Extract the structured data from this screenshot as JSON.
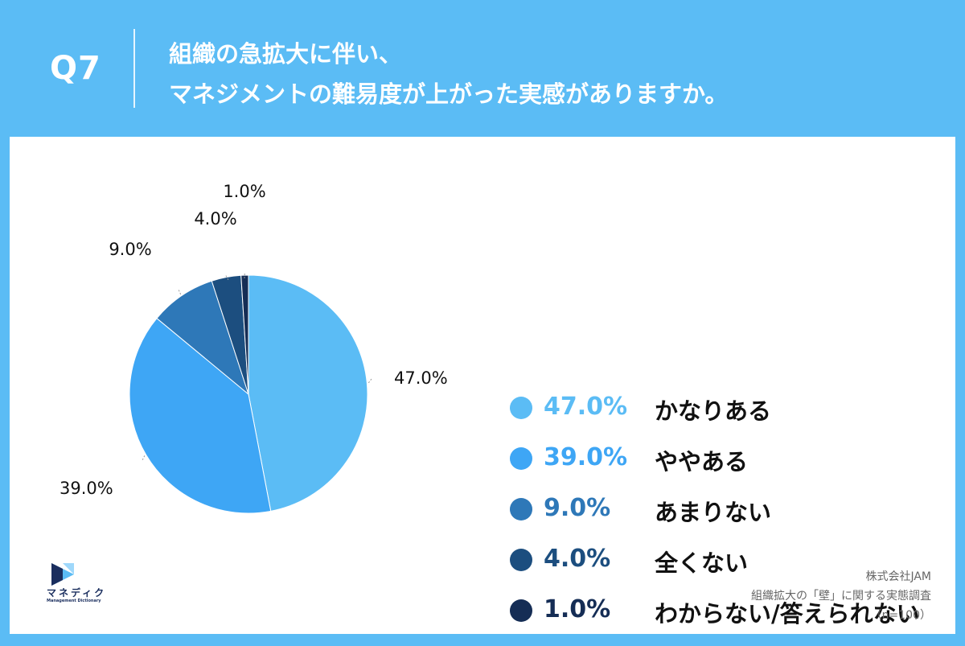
{
  "header": {
    "question_number": "Q7",
    "title_line1": "組織の急拡大に伴い、",
    "title_line2": "マネジメントの難易度が上がった実感がありますか。"
  },
  "chart_data": {
    "type": "pie",
    "categories": [
      "かなりある",
      "ややある",
      "あまりない",
      "全くない",
      "わからない/答えられない"
    ],
    "values": [
      47.0,
      39.0,
      9.0,
      4.0,
      1.0
    ],
    "value_labels": [
      "47.0%",
      "39.0%",
      "9.0%",
      "4.0%",
      "1.0%"
    ],
    "colors": [
      "#5bbcf5",
      "#3ea6f5",
      "#2e78b8",
      "#1c4e7f",
      "#152d55"
    ],
    "legend_text_colors": [
      "#5bbcf5",
      "#3ea6f5",
      "#2e78b8",
      "#1c4e7f",
      "#152d55"
    ],
    "legend_position": "right"
  },
  "logo": {
    "name": "マネディク",
    "subtitle": "Management Dictionary"
  },
  "source": {
    "company": "株式会社JAM",
    "survey": "組織拡大の「壁」に関する実態調査",
    "sample": "（n=100）"
  }
}
